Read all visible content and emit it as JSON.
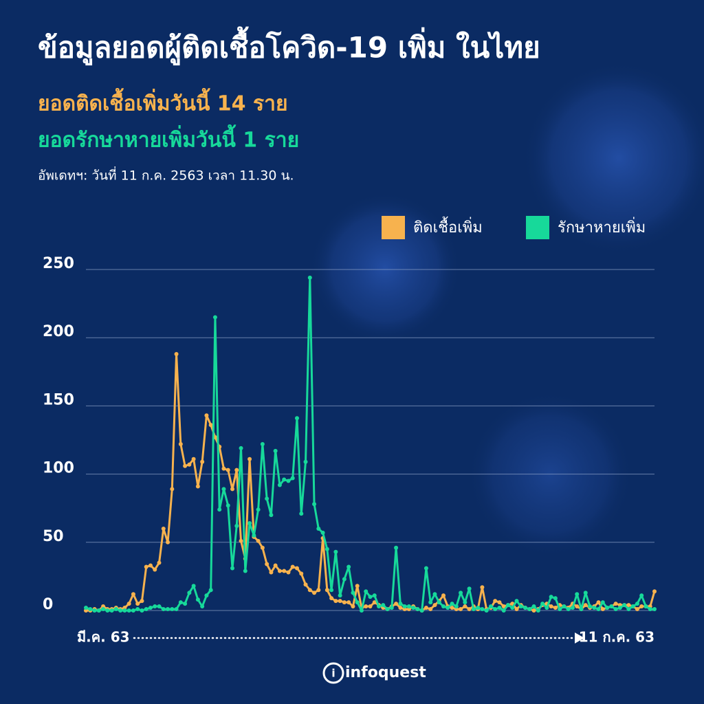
{
  "chart_data": {
    "type": "line",
    "title": "ข้อมูลยอดผู้ติดเชื้อโควิด-19 เพิ่ม ในไทย",
    "subtitles": [
      "ยอดติดเชื้อเพิ่มวันนี้ 14 ราย",
      "ยอดรักษาหายเพิ่มวันนี้ 1 ราย"
    ],
    "update_note": "อัพเดทฯ: วันที่ 11 ก.ค. 2563 เวลา 11.30 น.",
    "source": "infoquest",
    "categories": [
      "มี.ค. 63",
      null,
      null,
      null,
      null,
      null,
      null,
      null,
      null,
      null,
      null,
      null,
      null,
      null,
      null,
      null,
      null,
      null,
      null,
      null,
      null,
      null,
      null,
      null,
      null,
      null,
      null,
      null,
      null,
      null,
      null,
      null,
      null,
      null,
      null,
      null,
      null,
      null,
      null,
      null,
      null,
      null,
      null,
      null,
      null,
      null,
      null,
      null,
      null,
      null,
      null,
      null,
      null,
      null,
      null,
      null,
      null,
      null,
      null,
      null,
      null,
      null,
      null,
      null,
      null,
      null,
      null,
      null,
      null,
      null,
      null,
      null,
      null,
      null,
      null,
      null,
      null,
      null,
      null,
      null,
      null,
      null,
      null,
      null,
      null,
      null,
      null,
      null,
      null,
      null,
      null,
      null,
      null,
      null,
      null,
      null,
      null,
      null,
      null,
      null,
      null,
      null,
      null,
      null,
      null,
      null,
      null,
      null,
      null,
      null,
      null,
      null,
      null,
      null,
      null,
      null,
      null,
      null,
      null,
      null,
      null,
      null,
      null,
      null,
      null,
      null,
      null,
      null,
      null,
      null,
      null,
      null,
      "11 ก.ค. 63"
    ],
    "series": [
      {
        "name": "ติดเชื้อเพิ่ม",
        "color": "#f7b24e",
        "values": [
          0,
          0,
          1,
          0,
          3,
          1,
          1,
          2,
          1,
          2,
          5,
          12,
          5,
          7,
          32,
          33,
          30,
          35,
          60,
          50,
          89,
          188,
          122,
          106,
          107,
          111,
          91,
          109,
          143,
          136,
          127,
          120,
          104,
          103,
          89,
          103,
          51,
          38,
          111,
          54,
          51,
          46,
          34,
          28,
          33,
          29,
          29,
          28,
          32,
          31,
          27,
          19,
          15,
          13,
          15,
          53,
          15,
          9,
          7,
          7,
          6,
          6,
          3,
          18,
          2,
          3,
          3,
          6,
          4,
          2,
          1,
          3,
          5,
          2,
          1,
          1,
          3,
          1,
          0,
          2,
          1,
          4,
          7,
          11,
          3,
          2,
          1,
          1,
          3,
          1,
          3,
          1,
          17,
          1,
          2,
          7,
          6,
          3,
          4,
          5,
          1,
          4,
          2,
          1,
          0,
          1,
          4,
          5,
          3,
          2,
          4,
          3,
          2,
          5,
          3,
          1,
          4,
          2,
          3,
          6,
          1,
          2,
          3,
          5,
          4,
          4,
          4,
          3,
          1,
          3,
          3,
          3,
          14
        ]
      },
      {
        "name": "รักษาหายเพิ่ม",
        "color": "#17d99a",
        "values": [
          2,
          1,
          0,
          0,
          1,
          0,
          0,
          1,
          0,
          0,
          0,
          0,
          1,
          0,
          1,
          2,
          3,
          3,
          1,
          1,
          1,
          1,
          6,
          5,
          13,
          18,
          8,
          3,
          11,
          15,
          215,
          74,
          89,
          77,
          31,
          62,
          119,
          29,
          64,
          55,
          74,
          122,
          82,
          70,
          117,
          92,
          96,
          95,
          97,
          141,
          71,
          109,
          244,
          78,
          60,
          57,
          45,
          15,
          43,
          11,
          23,
          32,
          13,
          6,
          0,
          14,
          10,
          11,
          3,
          4,
          1,
          2,
          46,
          5,
          3,
          3,
          2,
          1,
          0,
          31,
          6,
          12,
          6,
          3,
          2,
          5,
          3,
          13,
          6,
          16,
          1,
          2,
          1,
          0,
          3,
          1,
          2,
          0,
          4,
          2,
          7,
          3,
          2,
          1,
          3,
          0,
          5,
          2,
          10,
          9,
          1,
          3,
          1,
          2,
          12,
          1,
          13,
          3,
          2,
          1,
          6,
          2,
          3,
          1,
          2,
          4,
          1,
          3,
          5,
          11,
          3,
          1,
          1
        ]
      }
    ],
    "ylim": [
      0,
      250
    ],
    "yticks": [
      0,
      50,
      100,
      150,
      200,
      250
    ],
    "grid": true
  }
}
